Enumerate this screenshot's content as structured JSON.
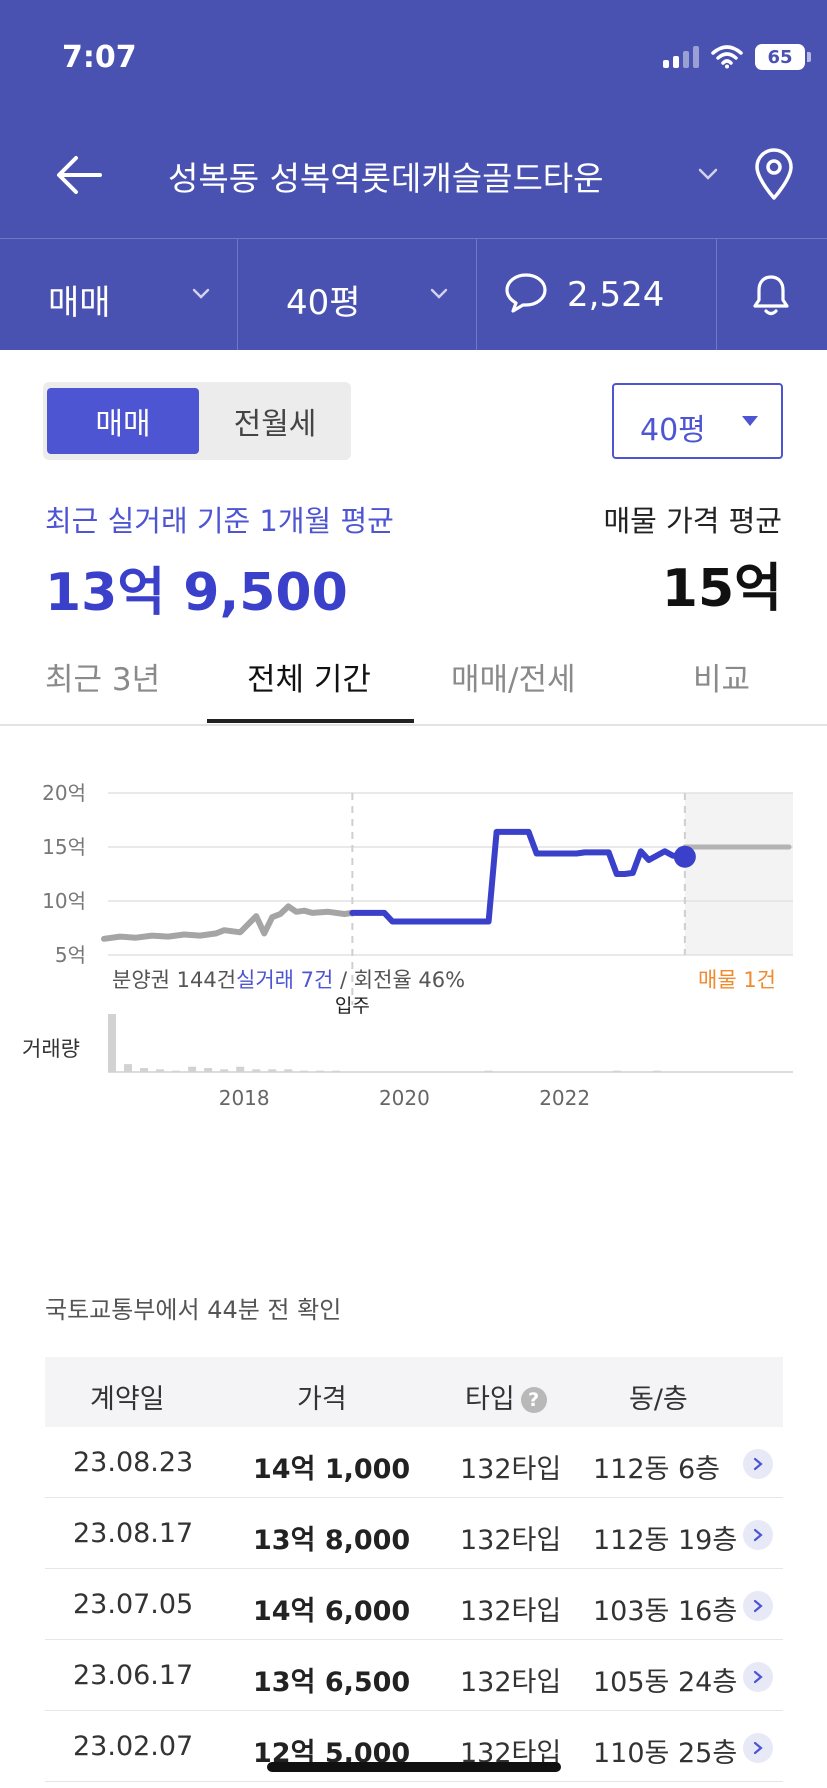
{
  "status": {
    "time": "7:07",
    "battery": "65"
  },
  "header": {
    "title": "성복동 성복역롯데캐슬골드타운",
    "trade_type": "매매",
    "area": "40평",
    "comments": "2,524"
  },
  "toggle": {
    "active": "매매",
    "inactive": "전월세"
  },
  "area_select": {
    "value": "40평"
  },
  "summary": {
    "recent_label": "최근 실거래 기준 1개월 평균",
    "recent_price": "13억 9,500",
    "listing_label": "매물 가격 평균",
    "listing_price": "15억"
  },
  "tabs": [
    {
      "label": "최근 3년",
      "active": false
    },
    {
      "label": "전체 기간",
      "active": true
    },
    {
      "label": "매매/전세",
      "active": false
    },
    {
      "label": "비교",
      "active": false
    }
  ],
  "chart_data": {
    "type": "line",
    "y_unit": "억",
    "ylim": [
      5,
      20
    ],
    "y_ticks": [
      "20억",
      "15억",
      "10억",
      "5억"
    ],
    "x_ticks": [
      "2018",
      "2020",
      "2022"
    ],
    "grid": true,
    "series": [
      {
        "name": "분양권",
        "color": "#a5a5a5",
        "x": [
          2016.4,
          2016.6,
          2016.8,
          2017.0,
          2017.2,
          2017.4,
          2017.6,
          2017.8,
          2017.9,
          2018.1,
          2018.3,
          2018.4,
          2018.5,
          2018.6,
          2018.7,
          2018.8,
          2018.9,
          2019.0,
          2019.2,
          2019.4,
          2019.5
        ],
        "y": [
          6.5,
          6.7,
          6.6,
          6.8,
          6.7,
          6.9,
          6.8,
          7.0,
          7.3,
          7.1,
          8.6,
          7.0,
          8.5,
          8.8,
          9.5,
          9.0,
          9.1,
          8.9,
          9.0,
          8.8,
          8.9
        ]
      },
      {
        "name": "실거래",
        "color": "#3a40c9",
        "x": [
          2019.5,
          2019.9,
          2020.0,
          2021.1,
          2021.2,
          2021.3,
          2021.7,
          2021.8,
          2022.3,
          2022.4,
          2022.7,
          2022.8,
          2022.9,
          2023.0,
          2023.1,
          2023.2,
          2023.4,
          2023.5,
          2023.65
        ],
        "y": [
          8.9,
          8.9,
          8.1,
          8.1,
          8.1,
          16.4,
          16.4,
          14.4,
          14.4,
          14.5,
          14.5,
          12.5,
          12.5,
          12.6,
          14.6,
          13.8,
          14.6,
          14.2,
          14.1
        ]
      },
      {
        "name": "매물",
        "color": "#b3b3b3",
        "x": [
          2023.65,
          2024.95
        ],
        "y": [
          15.0,
          15.0
        ]
      }
    ],
    "markers": [
      {
        "label": "입주",
        "x": 2019.5
      }
    ],
    "legend": {
      "presale_label": "분양권 144건",
      "trade_label": "실거래 7건",
      "turnover_label": " / 회전율 46%",
      "listing_label": "매물 1건"
    },
    "volume": {
      "label": "거래량",
      "x": [
        2016.5,
        2016.7,
        2016.9,
        2017.1,
        2017.3,
        2017.5,
        2017.7,
        2017.9,
        2018.1,
        2018.3,
        2018.5,
        2018.7,
        2018.9,
        2019.1,
        2019.3,
        2021.2,
        2022.8,
        2023.3
      ],
      "values": [
        44,
        6,
        3,
        2,
        1,
        4,
        3,
        2,
        4,
        2,
        2,
        2,
        1,
        1,
        1,
        1,
        1,
        1
      ]
    }
  },
  "verification": "국토교통부에서 44분 전 확인",
  "table": {
    "headers": {
      "date": "계약일",
      "price": "가격",
      "type": "타입",
      "dong": "동/층",
      "help": "?"
    },
    "rows": [
      {
        "date": "23.08.23",
        "price": "14억 1,000",
        "type": "132타입",
        "dong": "112동 6층"
      },
      {
        "date": "23.08.17",
        "price": "13억 8,000",
        "type": "132타입",
        "dong": "112동 19층"
      },
      {
        "date": "23.07.05",
        "price": "14억 6,000",
        "type": "132타입",
        "dong": "103동 16층"
      },
      {
        "date": "23.06.17",
        "price": "13억 6,500",
        "type": "132타입",
        "dong": "105동 24층"
      },
      {
        "date": "23.02.07",
        "price": "12억 5,000",
        "type": "132타입",
        "dong": "110동 25층"
      }
    ]
  }
}
